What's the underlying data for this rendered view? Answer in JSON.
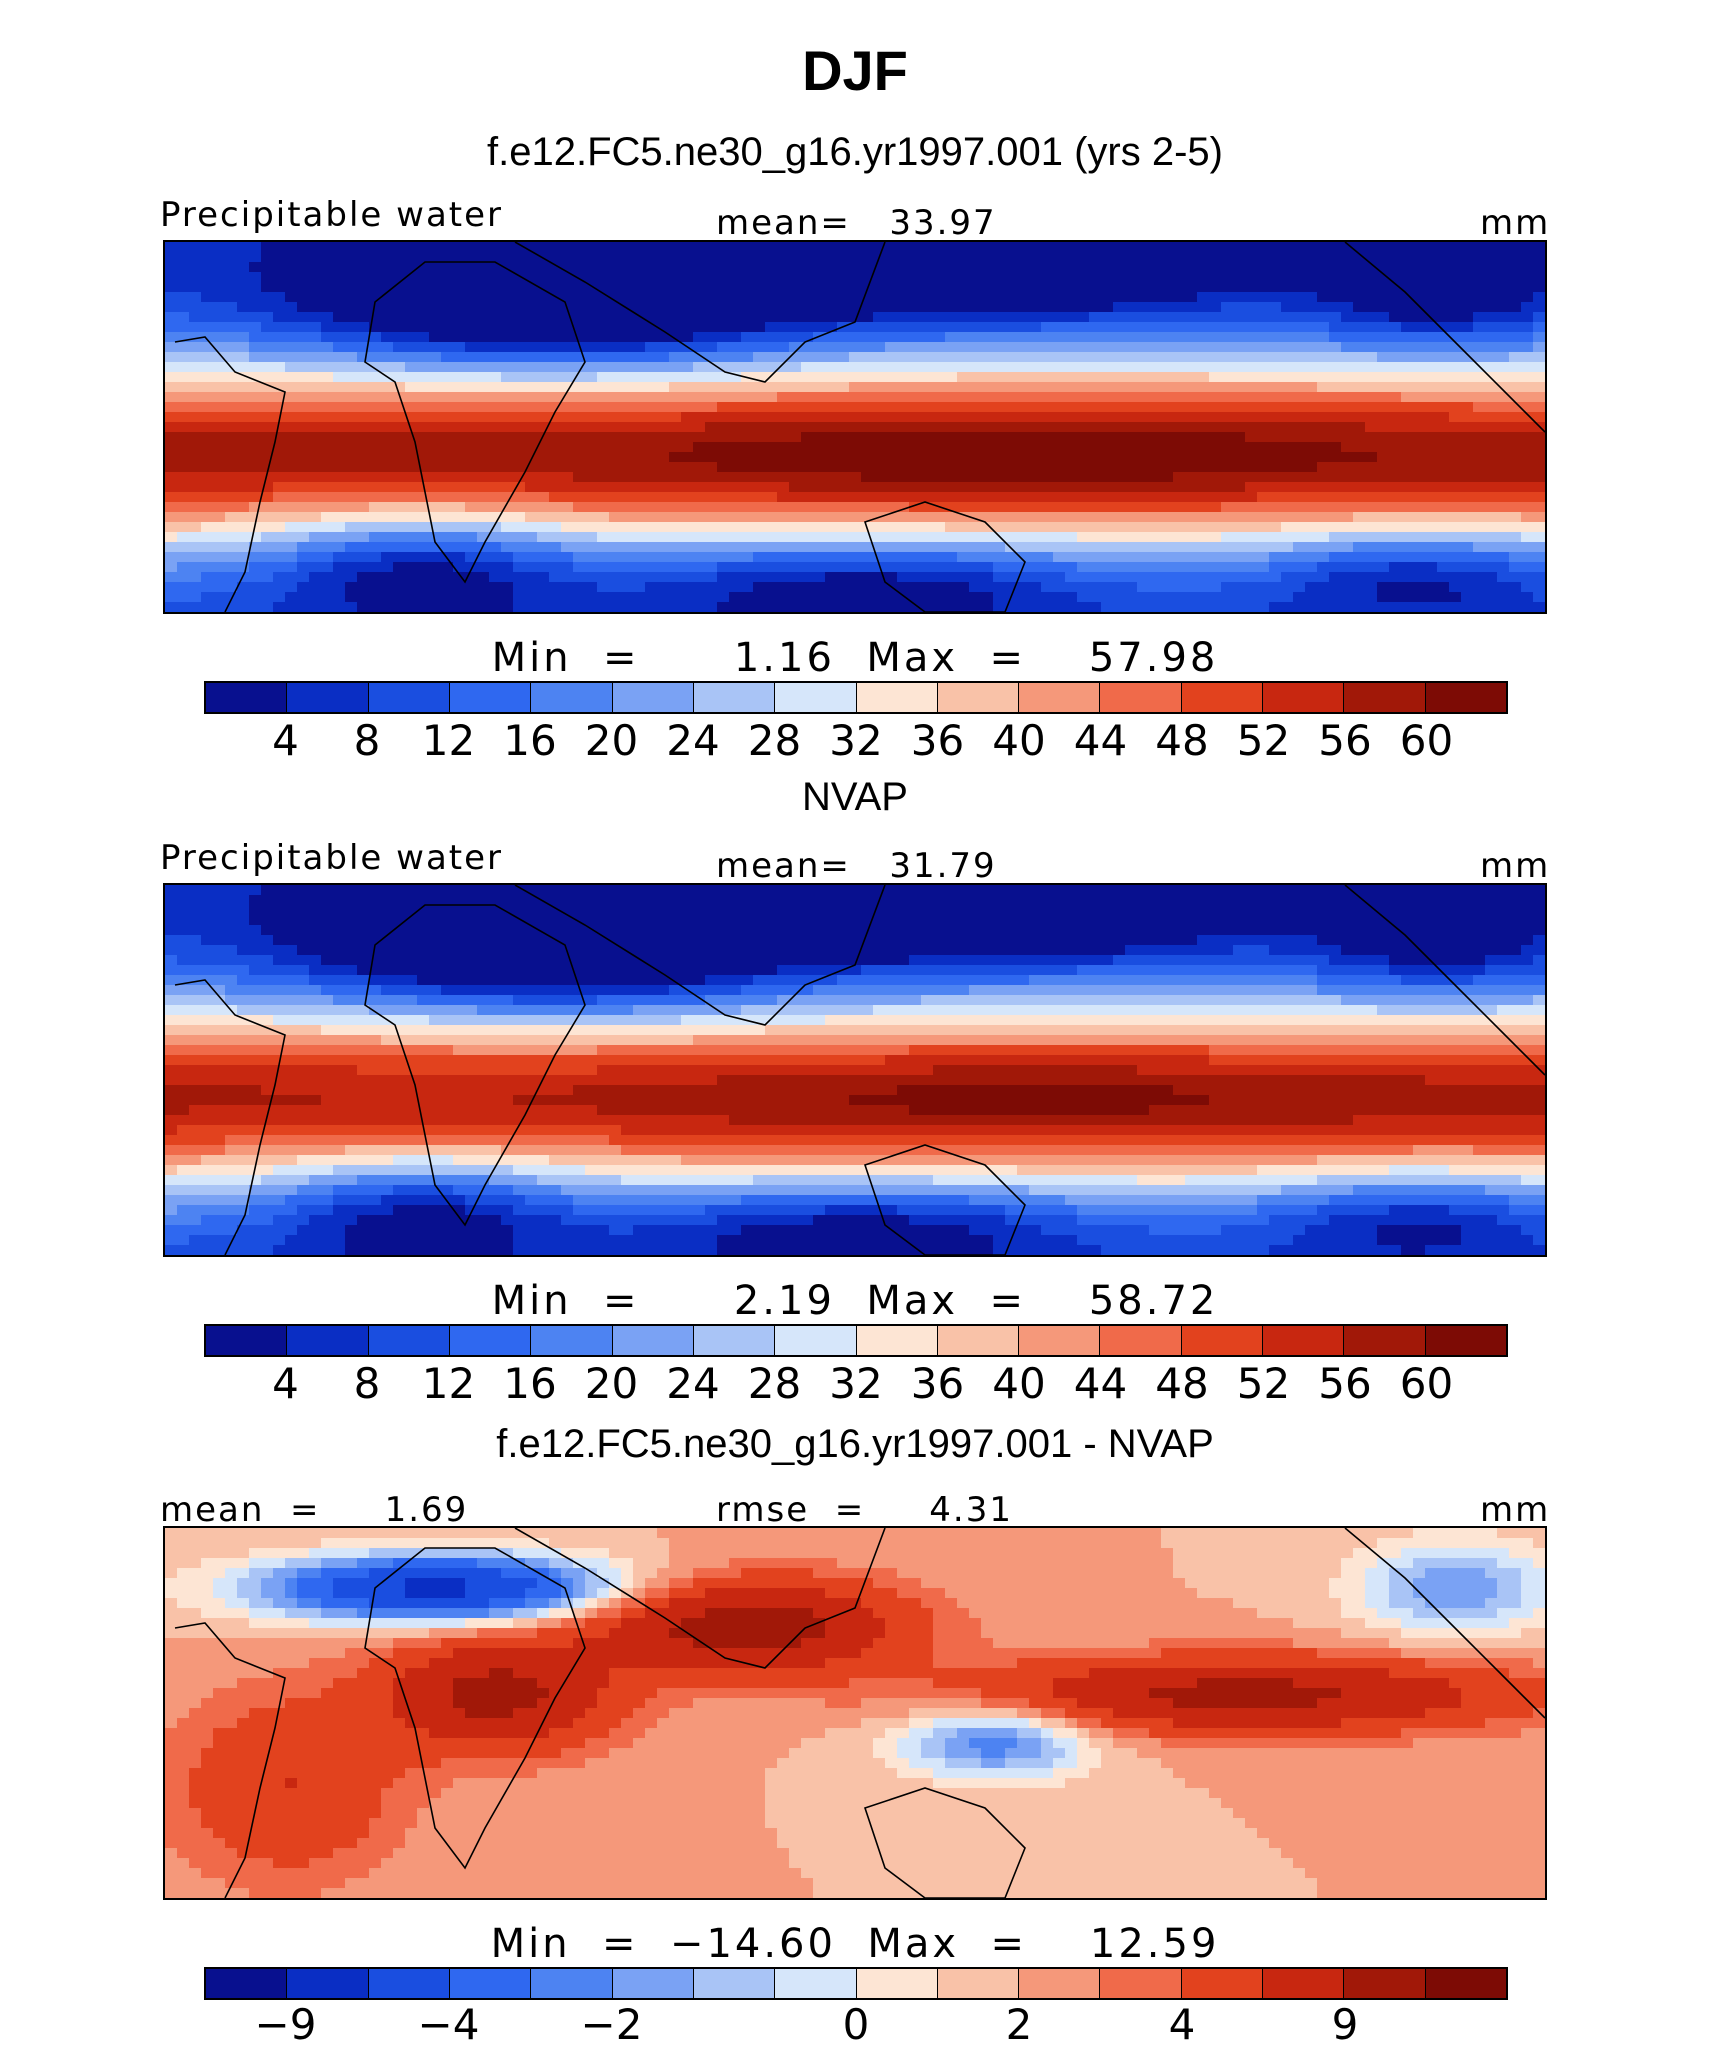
{
  "title": "DJF",
  "colors": [
    "#08108f",
    "#0a2ec4",
    "#1a4ee0",
    "#2f68f0",
    "#4d83f2",
    "#7aa2f4",
    "#a9c4f6",
    "#d6e6fa",
    "#fde5d4",
    "#f9c2a8",
    "#f5987a",
    "#f06a4a",
    "#e2421e",
    "#c82710",
    "#a11808",
    "#7d0b05"
  ],
  "panels": [
    {
      "title": "f.e12.FC5.ne30_g16.yr1997.001 (yrs 2-5)",
      "left_label": "Precipitable water",
      "center_label": "mean=   33.97",
      "right_label": "mm",
      "minmax": "Min  =      1.16  Max  =    57.98",
      "ticks": [
        "4",
        "8",
        "12",
        "16",
        "20",
        "24",
        "28",
        "32",
        "36",
        "40",
        "44",
        "48",
        "52",
        "56",
        "60"
      ],
      "pattern": "model"
    },
    {
      "title": "NVAP",
      "left_label": "Precipitable water",
      "center_label": "mean=   31.79",
      "right_label": "mm",
      "minmax": "Min  =      2.19  Max  =    58.72",
      "ticks": [
        "4",
        "8",
        "12",
        "16",
        "20",
        "24",
        "28",
        "32",
        "36",
        "40",
        "44",
        "48",
        "52",
        "56",
        "60"
      ],
      "pattern": "obs"
    },
    {
      "title": "f.e12.FC5.ne30_g16.yr1997.001 - NVAP",
      "left_label": "mean  =     1.69",
      "center_label": "rmse  =     4.31",
      "right_label": "mm",
      "minmax": "Min  =  −14.60  Max  =    12.59",
      "ticks": [
        "−9",
        "−4",
        "−2",
        "0",
        "2",
        "4",
        "9"
      ],
      "pattern": "diff"
    }
  ]
}
